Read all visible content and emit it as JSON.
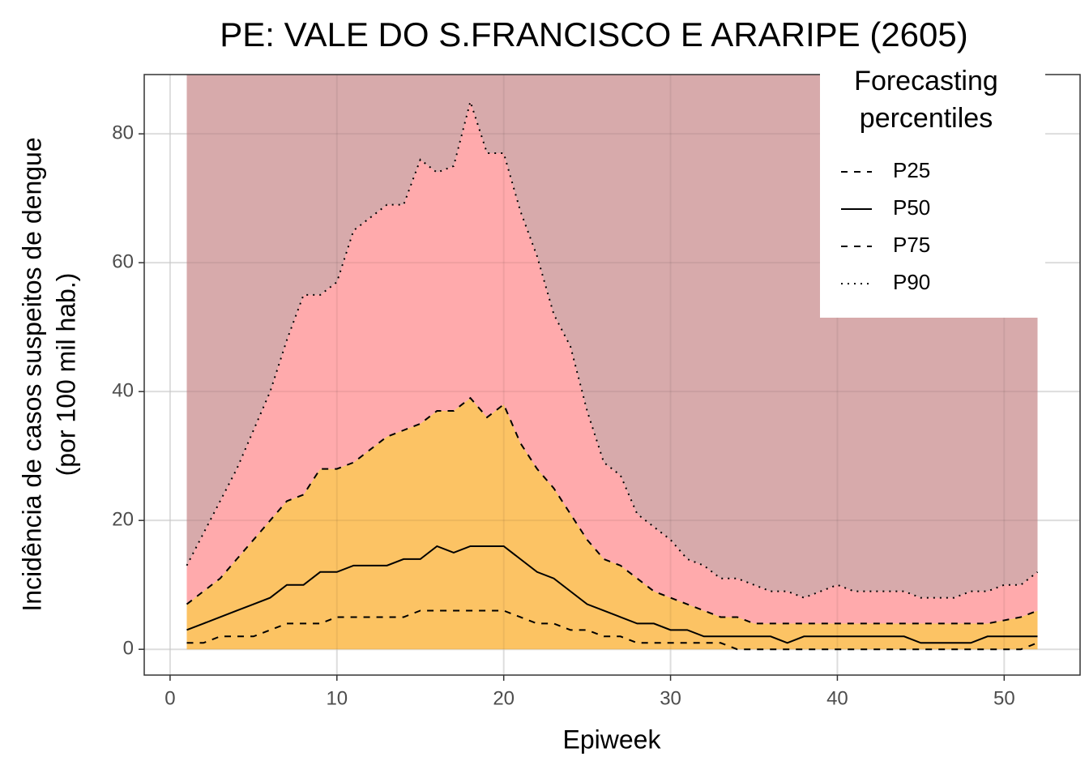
{
  "chart_data": {
    "type": "percentile-bands",
    "title": "PE: VALE DO S.FRANCISCO E ARARIPE (2605)",
    "xlabel": "Epiweek",
    "ylabel": [
      "Incidência de casos suspeitos de dengue",
      "(por 100 mil hab.)"
    ],
    "x": [
      1,
      2,
      3,
      4,
      5,
      6,
      7,
      8,
      9,
      10,
      11,
      12,
      13,
      14,
      15,
      16,
      17,
      18,
      19,
      20,
      21,
      22,
      23,
      24,
      25,
      26,
      27,
      28,
      29,
      30,
      31,
      32,
      33,
      34,
      35,
      36,
      37,
      38,
      39,
      40,
      41,
      42,
      43,
      44,
      45,
      46,
      47,
      48,
      49,
      50,
      51,
      52
    ],
    "series": [
      {
        "name": "P25",
        "dash": "dashed",
        "fill": "#ffffd9",
        "values": [
          1,
          1,
          2,
          2,
          2,
          3,
          4,
          4,
          4,
          5,
          5,
          5,
          5,
          5,
          6,
          6,
          6,
          6,
          6,
          6,
          5,
          4,
          4,
          3,
          3,
          2,
          2,
          1,
          1,
          1,
          1,
          1,
          1,
          0,
          0,
          0,
          0,
          0,
          0,
          0,
          0,
          0,
          0,
          0,
          0,
          0,
          0,
          0,
          0,
          0,
          0,
          1
        ]
      },
      {
        "name": "P50",
        "dash": "solid",
        "values": [
          3,
          4,
          5,
          6,
          7,
          8,
          10,
          10,
          12,
          12,
          13,
          13,
          13,
          14,
          14,
          16,
          15,
          16,
          16,
          16,
          14,
          12,
          11,
          9,
          7,
          6,
          5,
          4,
          4,
          3,
          3,
          2,
          2,
          2,
          2,
          2,
          1,
          2,
          2,
          2,
          2,
          2,
          2,
          2,
          1,
          1,
          1,
          1,
          2,
          2,
          2,
          2
        ]
      },
      {
        "name": "P75",
        "dash": "dashed",
        "fill": "#fcc05c",
        "values": [
          7,
          9,
          11,
          14,
          17,
          20,
          23,
          24,
          28,
          28,
          29,
          31,
          33,
          34,
          35,
          37,
          37,
          39,
          36,
          38,
          32,
          28,
          25,
          21,
          17,
          14,
          13,
          11,
          9,
          8,
          7,
          6,
          5,
          5,
          4,
          4,
          4,
          4,
          4,
          4,
          4,
          4,
          4,
          4,
          4,
          4,
          4,
          4,
          4,
          4.5,
          5,
          6
        ]
      },
      {
        "name": "P90",
        "dash": "dotted",
        "fill": "#ffa5a8",
        "values": [
          13,
          18,
          23,
          28,
          34,
          40,
          48,
          55,
          55,
          57,
          65,
          67,
          69,
          69,
          76,
          74,
          75,
          85,
          77,
          77,
          68,
          61,
          52,
          47,
          37,
          29,
          27,
          21,
          19,
          17,
          14,
          13,
          11,
          11,
          10,
          9,
          9,
          8,
          9,
          10,
          9,
          9,
          9,
          9,
          8,
          8,
          8,
          9,
          9,
          10,
          10,
          12
        ]
      }
    ],
    "top_fill": "#d5a5a7",
    "legend_title": "Forecasting percentiles",
    "legend": "top-right",
    "xlim": [
      -1.55,
      54.55
    ],
    "xticks": [
      0,
      10,
      20,
      30,
      40,
      50
    ],
    "ylim": [
      -4,
      89.2
    ],
    "yticks": [
      0,
      20,
      40,
      60,
      80
    ],
    "grid": true
  }
}
